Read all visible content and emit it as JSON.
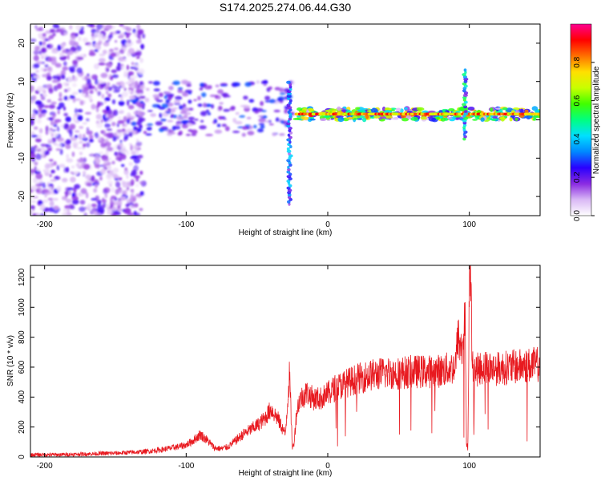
{
  "title": "S174.2025.274.06.44.G30",
  "chart_data": [
    {
      "type": "heatmap",
      "name": "spectrogram",
      "xlabel": "Height of straight line (km)",
      "ylabel": "Frequency (Hz)",
      "xlim": [
        -210,
        150
      ],
      "ylim": [
        -25,
        25
      ],
      "xticks": [
        -200,
        -100,
        0,
        100
      ],
      "yticks": [
        -20,
        -10,
        0,
        10,
        20
      ],
      "colorbar": {
        "label": "Normalized spectral amplitude",
        "range": [
          0,
          1
        ],
        "ticks": [
          "0.0",
          "0.2",
          "0.4",
          "0.6",
          "0.8"
        ],
        "tick_values": [
          0,
          0.2,
          0.4,
          0.6,
          0.8
        ],
        "colors": [
          "#ffffff",
          "#d9b8f5",
          "#8a2be2",
          "#2a00ff",
          "#0088ff",
          "#00e0ff",
          "#00ff80",
          "#40ff00",
          "#c8ff00",
          "#ffe000",
          "#ff7000",
          "#ff0000",
          "#ff0090"
        ]
      },
      "features": [
        {
          "description": "scattered noise",
          "x_range": [
            -210,
            -130
          ],
          "freq_range": [
            -25,
            25
          ],
          "amplitude": 0.1
        },
        {
          "description": "band near 3 Hz",
          "x_range": [
            -140,
            -25
          ],
          "freq": 3,
          "amplitude": 0.25
        },
        {
          "description": "carrier line",
          "x_range": [
            -22,
            150
          ],
          "freq": 1.5,
          "amplitude": 0.75
        },
        {
          "description": "spike at -27 km",
          "x": -27,
          "freq_range": [
            -22,
            10
          ],
          "amplitude": 0.3
        },
        {
          "description": "spike at 97 km",
          "x": 97,
          "freq_range": [
            -5,
            13
          ],
          "amplitude": 0.4
        }
      ]
    },
    {
      "type": "line",
      "name": "snr",
      "xlabel": "Height of straight line (km)",
      "ylabel": "SNR (10 * v/v)",
      "xlim": [
        -210,
        150
      ],
      "ylim": [
        0,
        1280
      ],
      "xticks": [
        -200,
        -100,
        0,
        100
      ],
      "yticks": [
        0,
        200,
        400,
        600,
        800,
        1000,
        1200
      ],
      "color": "#e8191f",
      "x": [
        -210,
        -190,
        -170,
        -150,
        -130,
        -120,
        -110,
        -100,
        -95,
        -90,
        -85,
        -80,
        -75,
        -70,
        -65,
        -60,
        -55,
        -50,
        -45,
        -40,
        -35,
        -30,
        -27,
        -25,
        -24,
        -22,
        -20,
        -15,
        -10,
        -5,
        0,
        5,
        10,
        20,
        30,
        40,
        50,
        60,
        70,
        80,
        90,
        92,
        95,
        97,
        98,
        99,
        100,
        101,
        102,
        105,
        110,
        120,
        130,
        140,
        150
      ],
      "values": [
        15,
        15,
        20,
        25,
        35,
        45,
        60,
        80,
        110,
        150,
        110,
        60,
        55,
        70,
        110,
        150,
        180,
        210,
        250,
        320,
        250,
        150,
        550,
        60,
        80,
        300,
        380,
        430,
        390,
        390,
        420,
        460,
        480,
        520,
        545,
        560,
        560,
        570,
        570,
        575,
        600,
        800,
        700,
        950,
        100,
        60,
        1150,
        1280,
        600,
        580,
        600,
        590,
        600,
        610,
        620
      ]
    }
  ]
}
